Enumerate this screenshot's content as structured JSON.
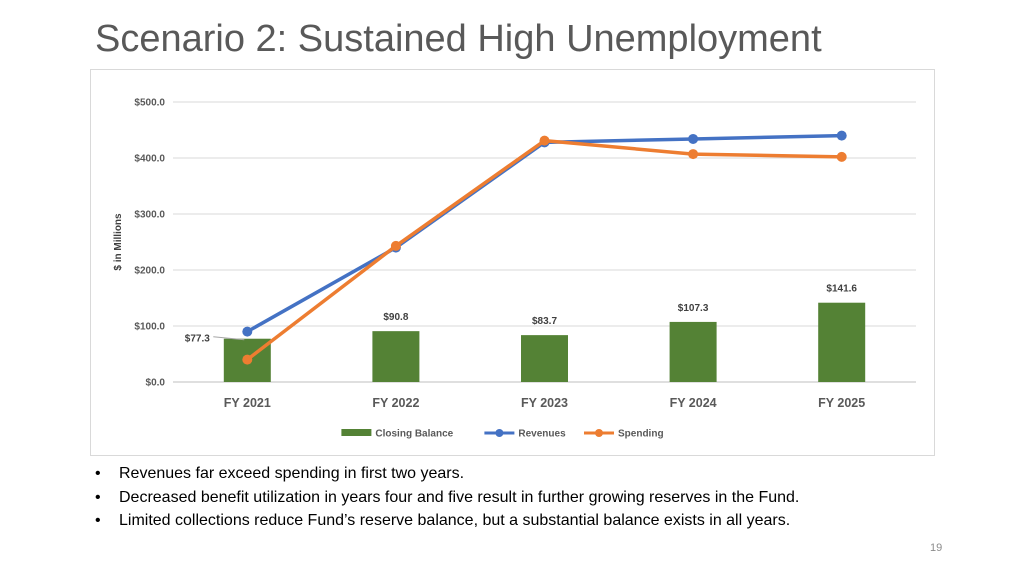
{
  "slide": {
    "title": "Scenario 2: Sustained High Unemployment",
    "bullets": [
      "Revenues far exceed spending in first two years.",
      "Decreased benefit utilization in years four and five result in further growing reserves in the Fund.",
      "Limited collections reduce Fund’s reserve balance, but a substantial balance exists in all years."
    ],
    "bullet_symbol": "•",
    "page_number": "19"
  },
  "chart_data": {
    "type": "bar",
    "categories": [
      "FY 2021",
      "FY 2022",
      "FY 2023",
      "FY 2024",
      "FY 2025"
    ],
    "ylabel": "$ in Millions",
    "ylim": [
      0,
      500
    ],
    "yticks": [
      0,
      100,
      200,
      300,
      400,
      500
    ],
    "ytick_labels": [
      "$0.0",
      "$100.0",
      "$200.0",
      "$300.0",
      "$400.0",
      "$500.0"
    ],
    "grid": true,
    "legend_position": "bottom",
    "series": [
      {
        "name": "Closing Balance",
        "kind": "bar",
        "color": "#548235",
        "values": [
          77.3,
          90.8,
          83.7,
          107.3,
          141.6
        ],
        "data_labels": [
          "$77.3",
          "$90.8",
          "$83.7",
          "$107.3",
          "$141.6"
        ]
      },
      {
        "name": "Revenues",
        "kind": "line",
        "color": "#4472c4",
        "values": [
          90,
          240,
          428,
          434,
          440
        ]
      },
      {
        "name": "Spending",
        "kind": "line",
        "color": "#ed7d31",
        "values": [
          40,
          243,
          431,
          407,
          402
        ]
      }
    ]
  }
}
